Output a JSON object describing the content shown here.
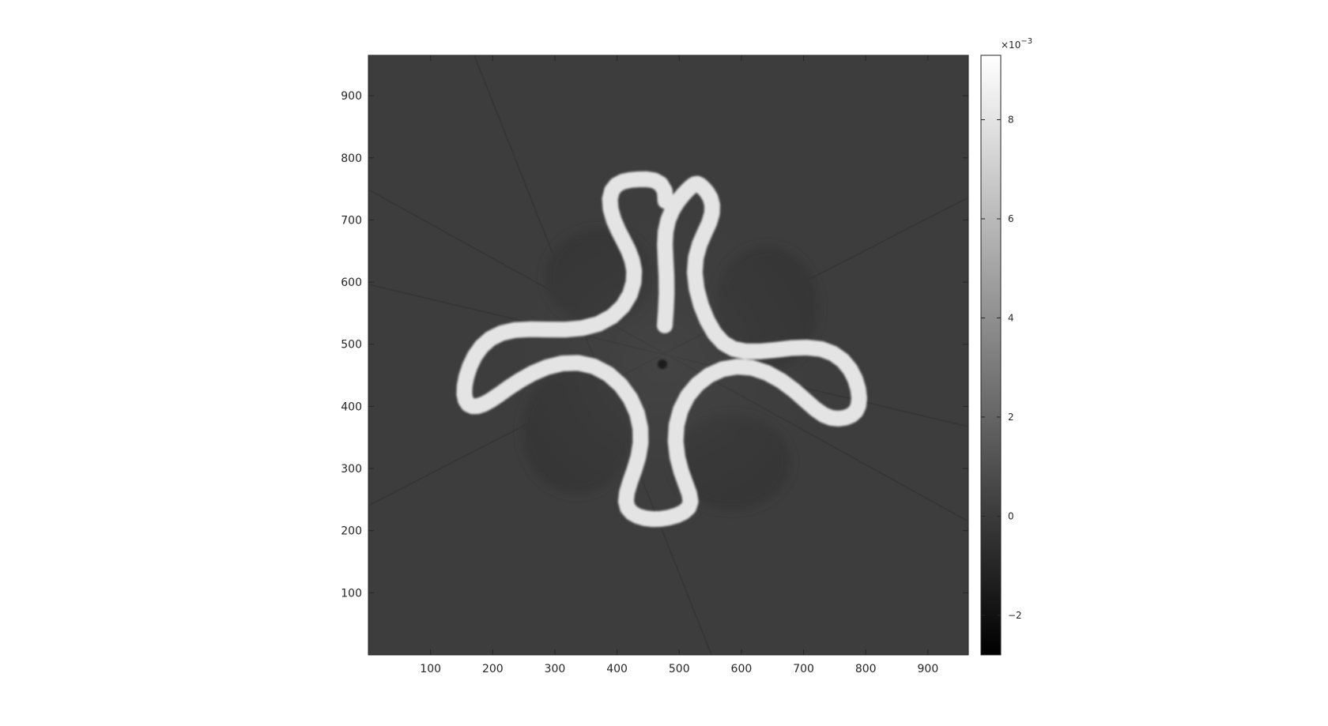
{
  "chart_data": {
    "type": "heatmap",
    "title": "",
    "xlabel": "",
    "ylabel": "",
    "xlim": [
      0,
      965
    ],
    "ylim": [
      0,
      965
    ],
    "x_ticks": [
      100,
      200,
      300,
      400,
      500,
      600,
      700,
      800,
      900
    ],
    "y_ticks": [
      100,
      200,
      300,
      400,
      500,
      600,
      700,
      800,
      900
    ],
    "colormap": "gray",
    "colorbar": {
      "range": [
        -2.8,
        9.3
      ],
      "ticks": [
        -2,
        0,
        2,
        4,
        6,
        8
      ],
      "tick_labels": [
        "−2",
        "0",
        "2",
        "4",
        "6",
        "8"
      ],
      "exponent_label": "×10",
      "exponent_value": "−3"
    },
    "image_content": {
      "background_value": 0.4,
      "feature": "four-lobed bright ring (CT cross-section), centered near (470, 470)",
      "feature_peak_value": 9.0
    }
  }
}
